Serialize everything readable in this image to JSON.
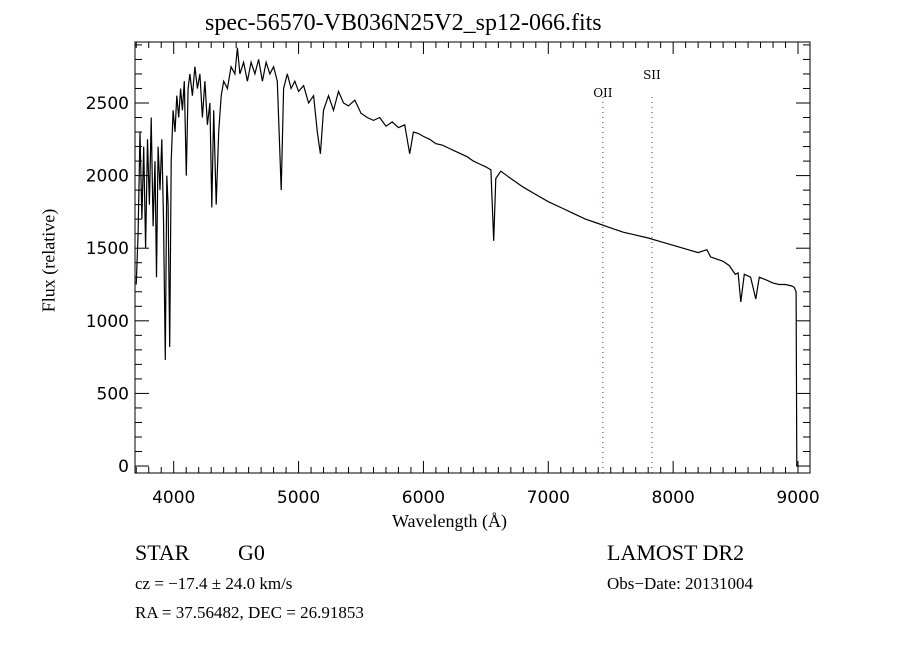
{
  "chart_data": {
    "type": "line",
    "title": "spec-56570-VB036N25V2_sp12-066.fits",
    "xlabel": "Wavelength (Å)",
    "ylabel": "Flux (relative)",
    "xlim": [
      3690,
      9096
    ],
    "ylim": [
      -48,
      2920
    ],
    "xticks": [
      4000,
      5000,
      6000,
      7000,
      8000,
      9000
    ],
    "xtick_labels": [
      "4000",
      "5000",
      "6000",
      "7000",
      "8000",
      "9000"
    ],
    "x_minor_step": 100,
    "yticks": [
      0,
      500,
      1000,
      1500,
      2000,
      2500
    ],
    "ytick_labels": [
      "0",
      "500",
      "1000",
      "1500",
      "2000",
      "2500"
    ],
    "y_minor_step": 100,
    "grid": false,
    "series": [
      {
        "name": "spectrum",
        "color": "#000000",
        "points": [
          [
            3700,
            1250
          ],
          [
            3715,
            1600
          ],
          [
            3730,
            2300
          ],
          [
            3745,
            1700
          ],
          [
            3760,
            2200
          ],
          [
            3775,
            1500
          ],
          [
            3790,
            2250
          ],
          [
            3805,
            1800
          ],
          [
            3820,
            2400
          ],
          [
            3835,
            1650
          ],
          [
            3850,
            2100
          ],
          [
            3862,
            1300
          ],
          [
            3875,
            2200
          ],
          [
            3890,
            1900
          ],
          [
            3905,
            2250
          ],
          [
            3918,
            1700
          ],
          [
            3933,
            730
          ],
          [
            3945,
            2000
          ],
          [
            3955,
            1800
          ],
          [
            3968,
            820
          ],
          [
            3980,
            2100
          ],
          [
            3995,
            2450
          ],
          [
            4010,
            2300
          ],
          [
            4025,
            2550
          ],
          [
            4040,
            2400
          ],
          [
            4055,
            2600
          ],
          [
            4070,
            2450
          ],
          [
            4085,
            2650
          ],
          [
            4101,
            2000
          ],
          [
            4115,
            2600
          ],
          [
            4130,
            2700
          ],
          [
            4150,
            2550
          ],
          [
            4170,
            2750
          ],
          [
            4190,
            2600
          ],
          [
            4210,
            2700
          ],
          [
            4230,
            2400
          ],
          [
            4250,
            2650
          ],
          [
            4270,
            2350
          ],
          [
            4290,
            2500
          ],
          [
            4305,
            1780
          ],
          [
            4320,
            2450
          ],
          [
            4340,
            1800
          ],
          [
            4360,
            2300
          ],
          [
            4380,
            2550
          ],
          [
            4400,
            2650
          ],
          [
            4430,
            2600
          ],
          [
            4460,
            2750
          ],
          [
            4490,
            2700
          ],
          [
            4510,
            2880
          ],
          [
            4530,
            2700
          ],
          [
            4560,
            2780
          ],
          [
            4590,
            2650
          ],
          [
            4620,
            2780
          ],
          [
            4650,
            2700
          ],
          [
            4680,
            2800
          ],
          [
            4710,
            2650
          ],
          [
            4740,
            2780
          ],
          [
            4770,
            2700
          ],
          [
            4800,
            2750
          ],
          [
            4830,
            2650
          ],
          [
            4861,
            1900
          ],
          [
            4880,
            2600
          ],
          [
            4910,
            2700
          ],
          [
            4940,
            2600
          ],
          [
            4970,
            2650
          ],
          [
            5000,
            2580
          ],
          [
            5040,
            2620
          ],
          [
            5080,
            2500
          ],
          [
            5120,
            2550
          ],
          [
            5150,
            2300
          ],
          [
            5175,
            2150
          ],
          [
            5200,
            2450
          ],
          [
            5240,
            2550
          ],
          [
            5280,
            2450
          ],
          [
            5320,
            2580
          ],
          [
            5360,
            2500
          ],
          [
            5400,
            2480
          ],
          [
            5450,
            2520
          ],
          [
            5500,
            2430
          ],
          [
            5550,
            2400
          ],
          [
            5600,
            2380
          ],
          [
            5650,
            2400
          ],
          [
            5700,
            2340
          ],
          [
            5750,
            2370
          ],
          [
            5800,
            2330
          ],
          [
            5850,
            2350
          ],
          [
            5890,
            2150
          ],
          [
            5920,
            2300
          ],
          [
            5960,
            2290
          ],
          [
            6000,
            2270
          ],
          [
            6050,
            2250
          ],
          [
            6100,
            2220
          ],
          [
            6150,
            2210
          ],
          [
            6200,
            2190
          ],
          [
            6250,
            2170
          ],
          [
            6300,
            2150
          ],
          [
            6350,
            2130
          ],
          [
            6400,
            2100
          ],
          [
            6450,
            2080
          ],
          [
            6500,
            2060
          ],
          [
            6540,
            2040
          ],
          [
            6563,
            1550
          ],
          [
            6580,
            1980
          ],
          [
            6620,
            2030
          ],
          [
            6700,
            1980
          ],
          [
            6800,
            1920
          ],
          [
            6900,
            1870
          ],
          [
            7000,
            1820
          ],
          [
            7100,
            1780
          ],
          [
            7200,
            1740
          ],
          [
            7300,
            1700
          ],
          [
            7400,
            1670
          ],
          [
            7500,
            1640
          ],
          [
            7600,
            1610
          ],
          [
            7700,
            1590
          ],
          [
            7800,
            1570
          ],
          [
            7900,
            1545
          ],
          [
            8000,
            1520
          ],
          [
            8100,
            1495
          ],
          [
            8200,
            1470
          ],
          [
            8270,
            1490
          ],
          [
            8300,
            1440
          ],
          [
            8400,
            1410
          ],
          [
            8450,
            1380
          ],
          [
            8498,
            1320
          ],
          [
            8520,
            1330
          ],
          [
            8542,
            1130
          ],
          [
            8570,
            1320
          ],
          [
            8620,
            1300
          ],
          [
            8662,
            1150
          ],
          [
            8690,
            1300
          ],
          [
            8750,
            1280
          ],
          [
            8800,
            1260
          ],
          [
            8850,
            1250
          ],
          [
            8900,
            1250
          ],
          [
            8950,
            1240
          ],
          [
            8970,
            1230
          ],
          [
            8985,
            1200
          ],
          [
            8990,
            0
          ]
        ]
      }
    ],
    "annotations": [
      {
        "label": "OII",
        "x": 7437
      },
      {
        "label": "SII",
        "x": 7830
      }
    ],
    "annotation_line_color": "#8b1a4a"
  },
  "info": {
    "object_class": "STAR",
    "subclass": "G0",
    "cz": "cz = −17.4 ± 24.0 km/s",
    "radec": "RA =  37.56482, DEC =  26.91853",
    "survey": "LAMOST DR2",
    "obs_date": "Obs−Date: 20131004"
  }
}
